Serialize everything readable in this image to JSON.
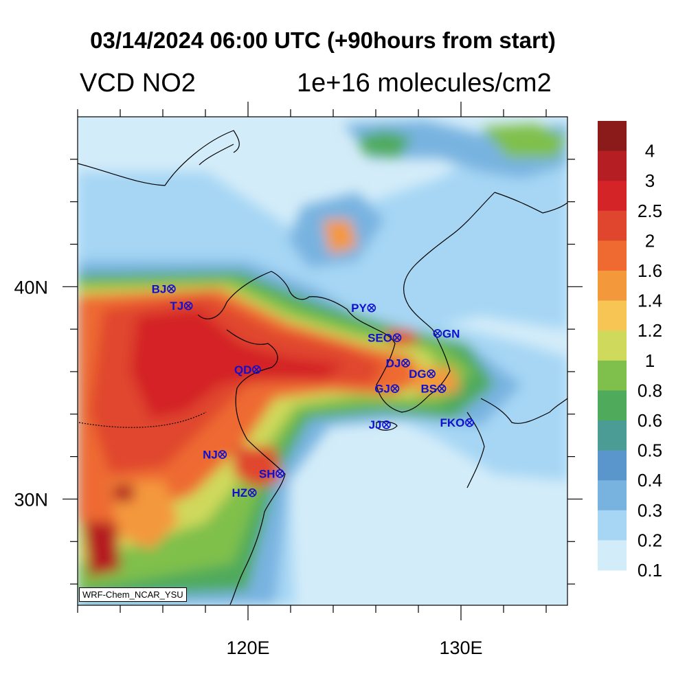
{
  "header": {
    "title": "03/14/2024 06:00 UTC (+90hours from start)",
    "variable": "VCD NO2",
    "units": "1e+16 molecules/cm2"
  },
  "axes": {
    "x_ticks": [
      {
        "label": "120E",
        "lon": 120
      },
      {
        "label": "130E",
        "lon": 130
      }
    ],
    "y_ticks": [
      {
        "label": "40N",
        "lat": 40
      },
      {
        "label": "30N",
        "lat": 30
      }
    ],
    "lon_range": [
      112,
      135
    ],
    "lat_range": [
      25,
      48
    ]
  },
  "colorbar": {
    "labels": [
      "4",
      "3",
      "2.5",
      "2",
      "1.6",
      "1.4",
      "1.2",
      "1",
      "0.8",
      "0.6",
      "0.5",
      "0.4",
      "0.3",
      "0.2",
      "0.1"
    ],
    "colors": [
      "#8b1a1a",
      "#b51e22",
      "#d42427",
      "#e0462e",
      "#ee6a30",
      "#f4983c",
      "#f7c553",
      "#cfd95b",
      "#7fc04c",
      "#4faa5c",
      "#4b9c94",
      "#5a96cc",
      "#78b3e0",
      "#a6d6f4",
      "#d3ecf9"
    ]
  },
  "cities": [
    {
      "code": "BJ",
      "lon": 116.4,
      "lat": 39.9,
      "label_side": "left"
    },
    {
      "code": "TJ",
      "lon": 117.2,
      "lat": 39.1,
      "label_side": "left"
    },
    {
      "code": "QD",
      "lon": 120.4,
      "lat": 36.1,
      "label_side": "left"
    },
    {
      "code": "NJ",
      "lon": 118.8,
      "lat": 32.1,
      "label_side": "left"
    },
    {
      "code": "SH",
      "lon": 121.5,
      "lat": 31.2,
      "label_side": "left"
    },
    {
      "code": "HZ",
      "lon": 120.2,
      "lat": 30.3,
      "label_side": "left"
    },
    {
      "code": "PY",
      "lon": 125.8,
      "lat": 39.0,
      "label_side": "left"
    },
    {
      "code": "SEO",
      "lon": 127.0,
      "lat": 37.6,
      "label_side": "left"
    },
    {
      "code": "GN",
      "lon": 128.9,
      "lat": 37.8,
      "label_side": "right"
    },
    {
      "code": "DJ",
      "lon": 127.4,
      "lat": 36.4,
      "label_side": "left"
    },
    {
      "code": "DG",
      "lon": 128.6,
      "lat": 35.9,
      "label_side": "left"
    },
    {
      "code": "GJ",
      "lon": 126.9,
      "lat": 35.2,
      "label_side": "left"
    },
    {
      "code": "BS",
      "lon": 129.1,
      "lat": 35.2,
      "label_side": "left"
    },
    {
      "code": "JJ",
      "lon": 126.5,
      "lat": 33.5,
      "label_side": "left"
    },
    {
      "code": "FKO",
      "lon": 130.4,
      "lat": 33.6,
      "label_side": "left"
    }
  ],
  "credit": "WRF-Chem_NCAR_YSU"
}
